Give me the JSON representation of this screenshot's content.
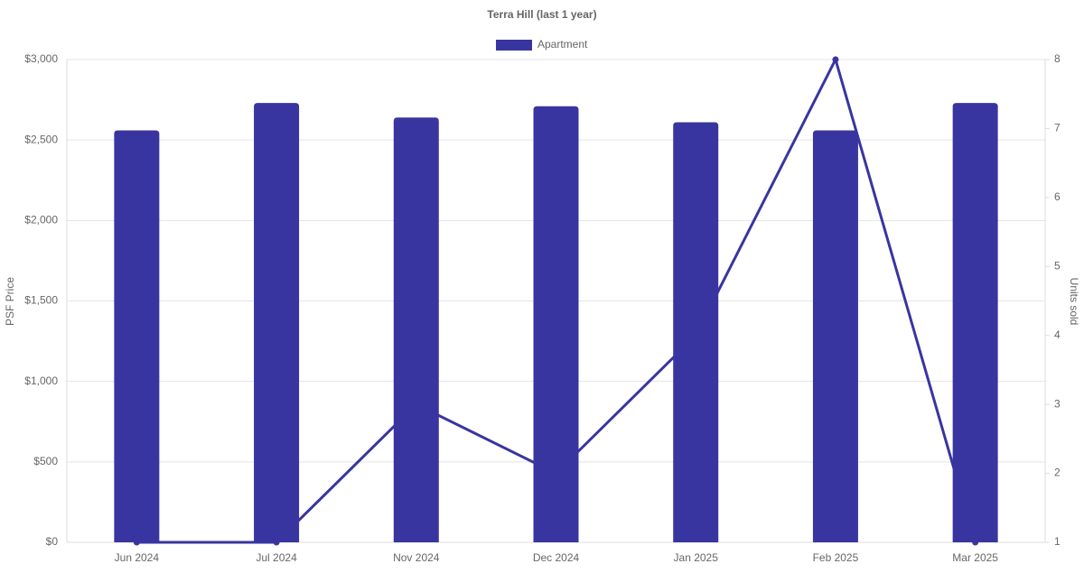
{
  "chart_data": {
    "type": "bar",
    "title": "Terra Hill (last 1 year)",
    "y_label": "PSF Price",
    "y2_label": "Units sold",
    "categories": [
      "Jun 2024",
      "Jul 2024",
      "Nov 2024",
      "Dec 2024",
      "Jan 2025",
      "Feb 2025",
      "Mar 2025"
    ],
    "series": [
      {
        "name": "Apartment",
        "type": "bar",
        "color": "#3935a0",
        "values": [
          2560,
          2730,
          2640,
          2710,
          2610,
          2560,
          2730
        ]
      },
      {
        "type": "line",
        "axis": "y2",
        "color": "#3935a0",
        "values": [
          1,
          1,
          3,
          2,
          4,
          8,
          1
        ]
      }
    ],
    "ylim": [
      0,
      3000
    ],
    "yticks": [
      {
        "value": 0,
        "label": "$0"
      },
      {
        "value": 500,
        "label": "$500"
      },
      {
        "value": 1000,
        "label": "$1,000"
      },
      {
        "value": 1500,
        "label": "$1,500"
      },
      {
        "value": 2000,
        "label": "$2,000"
      },
      {
        "value": 2500,
        "label": "$2,500"
      },
      {
        "value": 3000,
        "label": "$3,000"
      }
    ],
    "y2lim": [
      1,
      8
    ],
    "y2ticks": [
      1,
      2,
      3,
      4,
      5,
      6,
      7,
      8
    ],
    "grid": true,
    "legend": "top"
  }
}
